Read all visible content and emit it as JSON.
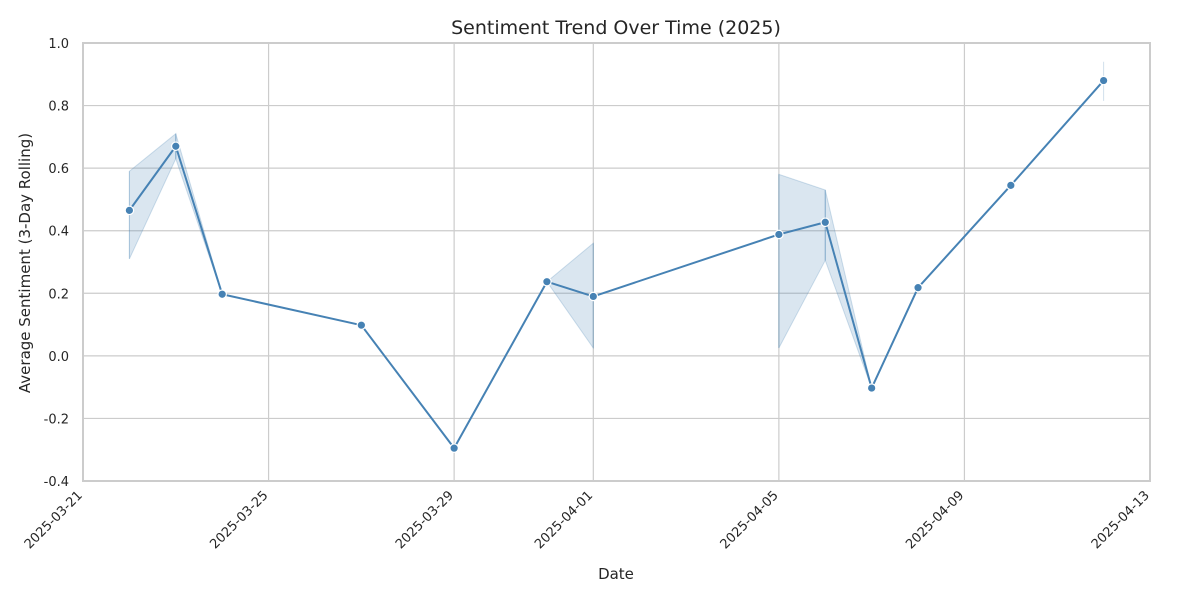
{
  "chart_data": {
    "type": "line",
    "title": "Sentiment Trend Over Time (2025)",
    "xlabel": "Date",
    "ylabel": "Average Sentiment (3-Day Rolling)",
    "xlim": [
      "2025-03-21",
      "2025-04-13"
    ],
    "ylim": [
      -0.4,
      1.0
    ],
    "x_ticks": [
      "2025-03-21",
      "2025-03-25",
      "2025-03-29",
      "2025-04-01",
      "2025-04-05",
      "2025-04-09",
      "2025-04-13"
    ],
    "y_ticks": [
      -0.4,
      -0.2,
      0.0,
      0.2,
      0.4,
      0.6,
      0.8,
      1.0
    ],
    "grid": true,
    "colors": {
      "line": "#4682b4",
      "band": "#4682b4",
      "grid": "#cccccc",
      "frame": "#cccccc"
    },
    "series": [
      {
        "x": [
          "2025-03-22",
          "2025-03-23",
          "2025-03-24",
          "2025-03-27",
          "2025-03-29",
          "2025-03-31",
          "2025-04-01",
          "2025-04-05",
          "2025-04-06",
          "2025-04-07",
          "2025-04-08",
          "2025-04-10",
          "2025-04-12"
        ],
        "y": [
          0.465,
          0.67,
          0.197,
          0.098,
          -0.295,
          0.237,
          0.19,
          0.388,
          0.427,
          -0.103,
          0.218,
          0.545,
          0.88
        ],
        "ci_low": [
          0.31,
          0.63,
          0.197,
          0.098,
          -0.295,
          0.237,
          0.025,
          0.025,
          0.305,
          -0.103,
          0.218,
          0.545,
          0.815
        ],
        "ci_high": [
          0.59,
          0.71,
          0.197,
          0.098,
          -0.295,
          0.237,
          0.36,
          0.58,
          0.53,
          -0.103,
          0.218,
          0.545,
          0.94
        ]
      }
    ]
  }
}
